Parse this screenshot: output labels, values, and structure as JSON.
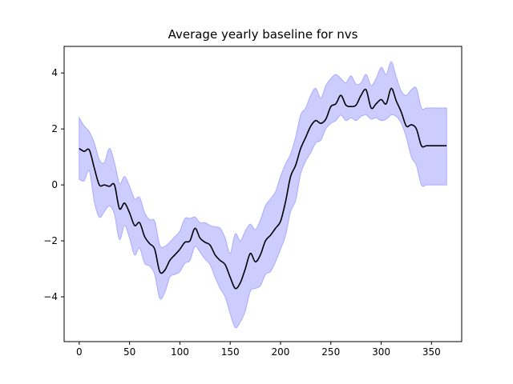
{
  "chart_data": {
    "type": "line",
    "title": "Average yearly baseline for nvs",
    "xlabel": "",
    "ylabel": "",
    "xlim": [
      -15,
      380
    ],
    "ylim": [
      -5.6,
      4.95
    ],
    "x_ticks": [
      0,
      50,
      100,
      150,
      200,
      250,
      300,
      350
    ],
    "y_ticks": [
      -4,
      -2,
      0,
      2,
      4
    ],
    "grid": false,
    "legend": "none",
    "colors": {
      "mean_line": "#000000",
      "band_fill": "#ccccff",
      "band_edge": "#aaaaff"
    },
    "series": [
      {
        "x": [
          0,
          5,
          10,
          15,
          20,
          25,
          30,
          35,
          40,
          45,
          50,
          55,
          60,
          65,
          70,
          75,
          80,
          85,
          90,
          95,
          100,
          105,
          110,
          115,
          120,
          125,
          130,
          135,
          140,
          145,
          150,
          155,
          160,
          165,
          170,
          175,
          180,
          185,
          190,
          195,
          200,
          205,
          210,
          215,
          220,
          225,
          230,
          235,
          240,
          245,
          250,
          255,
          260,
          265,
          270,
          275,
          280,
          285,
          290,
          295,
          300,
          305,
          310,
          315,
          320,
          325,
          330,
          335,
          340,
          345,
          350,
          355,
          360,
          365
        ],
        "mean": [
          1.3,
          1.2,
          1.25,
          0.6,
          0.0,
          0.0,
          -0.05,
          0.0,
          -0.85,
          -0.65,
          -1.0,
          -1.45,
          -1.35,
          -1.85,
          -2.1,
          -2.3,
          -3.1,
          -3.05,
          -2.7,
          -2.5,
          -2.3,
          -2.05,
          -2.0,
          -1.55,
          -1.9,
          -2.05,
          -2.15,
          -2.5,
          -2.7,
          -2.85,
          -3.3,
          -3.7,
          -3.5,
          -3.0,
          -2.45,
          -2.75,
          -2.5,
          -2.0,
          -1.8,
          -1.55,
          -1.3,
          -0.6,
          0.3,
          0.7,
          1.3,
          1.7,
          2.1,
          2.3,
          2.2,
          2.35,
          2.8,
          2.9,
          3.2,
          2.85,
          2.8,
          2.85,
          3.2,
          3.4,
          2.75,
          2.9,
          3.05,
          2.9,
          3.45,
          3.0,
          2.6,
          2.1,
          2.15,
          2.0,
          1.4,
          1.4,
          1.4,
          1.4,
          1.4,
          1.4
        ],
        "upper": [
          2.4,
          2.1,
          1.9,
          1.5,
          0.9,
          0.8,
          1.3,
          0.8,
          0.05,
          0.3,
          -0.05,
          -0.5,
          -0.45,
          -1.0,
          -1.25,
          -1.3,
          -2.15,
          -2.2,
          -2.05,
          -1.85,
          -1.65,
          -1.2,
          -1.2,
          -1.15,
          -1.35,
          -1.35,
          -1.45,
          -1.5,
          -1.55,
          -1.9,
          -2.45,
          -1.75,
          -2.0,
          -1.65,
          -1.4,
          -1.6,
          -1.25,
          -0.75,
          -0.5,
          -0.25,
          0.3,
          0.75,
          1.1,
          1.7,
          2.5,
          2.75,
          3.2,
          3.45,
          3.1,
          3.55,
          3.8,
          3.95,
          3.8,
          3.65,
          3.9,
          3.6,
          3.65,
          3.95,
          3.55,
          3.8,
          4.2,
          3.95,
          4.4,
          3.85,
          3.35,
          3.2,
          3.4,
          3.45,
          2.75,
          2.75,
          2.75,
          2.75,
          2.75,
          2.75
        ],
        "lower": [
          0.2,
          0.15,
          0.5,
          -0.6,
          -1.15,
          -0.95,
          -0.75,
          -1.05,
          -1.95,
          -1.45,
          -1.9,
          -2.5,
          -2.25,
          -2.8,
          -2.9,
          -3.2,
          -4.05,
          -3.85,
          -3.3,
          -3.2,
          -3.1,
          -2.8,
          -2.7,
          -2.2,
          -2.4,
          -2.65,
          -2.85,
          -3.3,
          -3.7,
          -4.0,
          -4.6,
          -5.1,
          -4.9,
          -4.5,
          -3.8,
          -3.7,
          -3.6,
          -3.2,
          -3.1,
          -2.75,
          -2.3,
          -1.8,
          -0.95,
          -0.55,
          0.4,
          0.85,
          1.15,
          1.5,
          1.6,
          2.0,
          2.2,
          2.3,
          2.5,
          2.3,
          2.4,
          2.3,
          2.45,
          2.5,
          2.35,
          2.4,
          2.3,
          2.35,
          2.5,
          2.45,
          2.2,
          1.7,
          1.0,
          0.7,
          0.0,
          0.0,
          0.0,
          0.0,
          0.0,
          0.0
        ]
      }
    ]
  }
}
